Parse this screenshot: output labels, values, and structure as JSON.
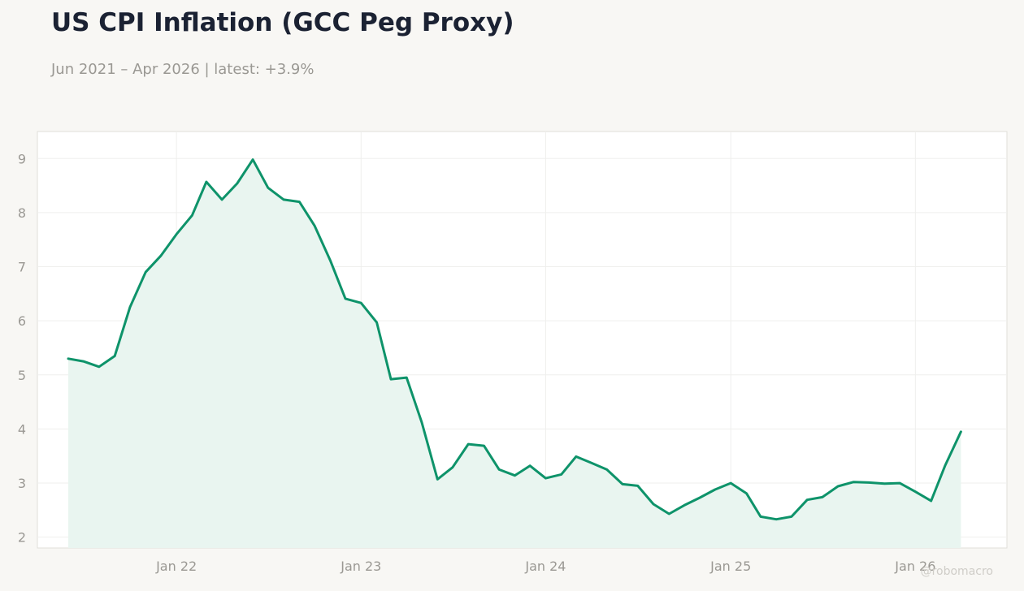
{
  "header": {
    "title": "US CPI Inflation (GCC Peg Proxy)",
    "subtitle": "Jun 2021 – Apr 2026 | latest: +3.9%"
  },
  "watermark": "@robomacro",
  "colors": {
    "line": "#0e936a",
    "area": "#e9f5f0",
    "grid": "#efefed",
    "axis_text": "#9a9893",
    "plot_bg": "#ffffff",
    "plot_border": "#e0dfda"
  },
  "chart_data": {
    "type": "area",
    "title": "US CPI Inflation (GCC Peg Proxy)",
    "subtitle": "Jun 2021 – Apr 2026 | latest: +3.9%",
    "xlabel": "",
    "ylabel": "",
    "ylim": [
      1.8,
      9.5
    ],
    "xlim": [
      "2021-04-01",
      "2026-07-01"
    ],
    "grid": true,
    "yticks": [
      2,
      3,
      4,
      5,
      6,
      7,
      8,
      9
    ],
    "xticks": [
      {
        "date": "2022-01-01",
        "label": "Jan 22"
      },
      {
        "date": "2023-01-01",
        "label": "Jan 23"
      },
      {
        "date": "2024-01-01",
        "label": "Jan 24"
      },
      {
        "date": "2025-01-01",
        "label": "Jan 25"
      },
      {
        "date": "2026-01-01",
        "label": "Jan 26"
      }
    ],
    "series": [
      {
        "x": [
          "2021-06",
          "2021-07",
          "2021-08",
          "2021-09",
          "2021-10",
          "2021-11",
          "2021-12",
          "2022-01",
          "2022-02",
          "2022-03",
          "2022-04",
          "2022-05",
          "2022-06",
          "2022-07",
          "2022-08",
          "2022-09",
          "2022-10",
          "2022-11",
          "2022-12",
          "2023-01",
          "2023-02",
          "2023-03",
          "2023-04",
          "2023-05",
          "2023-06",
          "2023-07",
          "2023-08",
          "2023-09",
          "2023-10",
          "2023-11",
          "2023-12",
          "2024-01",
          "2024-02",
          "2024-03",
          "2024-04",
          "2024-05",
          "2024-06",
          "2024-07",
          "2024-08",
          "2024-09",
          "2024-10",
          "2024-11",
          "2024-12",
          "2025-01",
          "2025-02",
          "2025-03",
          "2025-04",
          "2025-05",
          "2025-06",
          "2025-07",
          "2025-08",
          "2025-09",
          "2025-10",
          "2025-11",
          "2025-12",
          "2026-01",
          "2026-02",
          "2026-03",
          "2026-04"
        ],
        "values": [
          5.3,
          5.25,
          5.15,
          5.35,
          6.25,
          6.9,
          7.2,
          7.6,
          7.95,
          8.57,
          8.24,
          8.54,
          8.98,
          8.46,
          8.24,
          8.2,
          7.76,
          7.12,
          6.41,
          6.33,
          5.97,
          4.92,
          4.95,
          4.12,
          3.07,
          3.29,
          3.72,
          3.69,
          3.25,
          3.14,
          3.32,
          3.09,
          3.16,
          3.49,
          3.37,
          3.25,
          2.98,
          2.95,
          2.61,
          2.43,
          2.59,
          2.73,
          2.88,
          3.0,
          2.81,
          2.38,
          2.33,
          2.38,
          2.69,
          2.74,
          2.94,
          3.02,
          3.01,
          2.99,
          3.0,
          2.84,
          2.67,
          3.33,
          3.95
        ]
      }
    ]
  }
}
